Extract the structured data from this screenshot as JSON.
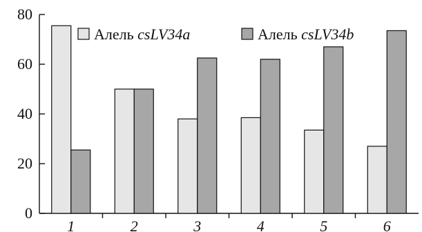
{
  "chart_data": {
    "type": "bar",
    "categories": [
      "1",
      "2",
      "3",
      "4",
      "5",
      "6"
    ],
    "series": [
      {
        "name_prefix": "Алель ",
        "name_italic": "csLV34a",
        "values": [
          75.5,
          50,
          38,
          38.5,
          33.5,
          27
        ],
        "color": "#e6e6e6"
      },
      {
        "name_prefix": "Алель ",
        "name_italic": "csLV34b",
        "values": [
          25.5,
          50,
          62.5,
          62,
          67,
          73.5
        ],
        "color": "#a7a7a7"
      }
    ],
    "ylim": [
      0,
      80
    ],
    "yticks": [
      0,
      20,
      40,
      60,
      80
    ],
    "legend": "top-right",
    "grid": false
  }
}
